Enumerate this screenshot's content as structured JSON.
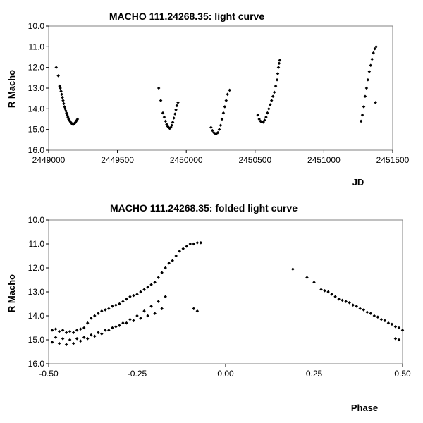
{
  "chart_data": [
    {
      "type": "scatter",
      "title": "MACHO 111.24268.35: light curve",
      "xlabel": "JD",
      "ylabel": "R Macho",
      "xlim": [
        2449000,
        2451500
      ],
      "ylim": [
        10.0,
        16.0
      ],
      "y_inverted": true,
      "grid": false,
      "xticks": [
        "2449000",
        "2449500",
        "2450000",
        "2450500",
        "2451000",
        "2451500"
      ],
      "yticks": [
        "10.0",
        "11.0",
        "12.0",
        "13.0",
        "14.0",
        "15.0",
        "16.0"
      ],
      "series": [
        {
          "color": "#000000",
          "points": [
            [
              2449055,
              12.0
            ],
            [
              2449070,
              12.4
            ],
            [
              2449080,
              12.9
            ],
            [
              2449085,
              13.0
            ],
            [
              2449090,
              13.15
            ],
            [
              2449095,
              13.3
            ],
            [
              2449100,
              13.45
            ],
            [
              2449105,
              13.6
            ],
            [
              2449110,
              13.75
            ],
            [
              2449115,
              13.9
            ],
            [
              2449120,
              14.0
            ],
            [
              2449125,
              14.1
            ],
            [
              2449130,
              14.2
            ],
            [
              2449135,
              14.3
            ],
            [
              2449140,
              14.4
            ],
            [
              2449145,
              14.5
            ],
            [
              2449150,
              14.55
            ],
            [
              2449155,
              14.6
            ],
            [
              2449160,
              14.65
            ],
            [
              2449165,
              14.7
            ],
            [
              2449170,
              14.72
            ],
            [
              2449175,
              14.75
            ],
            [
              2449180,
              14.75
            ],
            [
              2449185,
              14.72
            ],
            [
              2449190,
              14.7
            ],
            [
              2449195,
              14.65
            ],
            [
              2449200,
              14.6
            ],
            [
              2449205,
              14.55
            ],
            [
              2449210,
              14.5
            ],
            [
              2449800,
              13.0
            ],
            [
              2449815,
              13.6
            ],
            [
              2449830,
              14.2
            ],
            [
              2449840,
              14.4
            ],
            [
              2449850,
              14.6
            ],
            [
              2449858,
              14.75
            ],
            [
              2449865,
              14.85
            ],
            [
              2449872,
              14.9
            ],
            [
              2449880,
              14.95
            ],
            [
              2449888,
              14.9
            ],
            [
              2449895,
              14.8
            ],
            [
              2449902,
              14.65
            ],
            [
              2449910,
              14.45
            ],
            [
              2449918,
              14.25
            ],
            [
              2449925,
              14.05
            ],
            [
              2449932,
              13.85
            ],
            [
              2449940,
              13.7
            ],
            [
              2450180,
              14.9
            ],
            [
              2450190,
              15.05
            ],
            [
              2450200,
              15.15
            ],
            [
              2450210,
              15.2
            ],
            [
              2450220,
              15.2
            ],
            [
              2450230,
              15.15
            ],
            [
              2450240,
              15.0
            ],
            [
              2450250,
              14.8
            ],
            [
              2450260,
              14.5
            ],
            [
              2450270,
              14.2
            ],
            [
              2450280,
              13.9
            ],
            [
              2450290,
              13.6
            ],
            [
              2450300,
              13.3
            ],
            [
              2450315,
              13.1
            ],
            [
              2450520,
              14.3
            ],
            [
              2450530,
              14.5
            ],
            [
              2450540,
              14.6
            ],
            [
              2450550,
              14.65
            ],
            [
              2450560,
              14.65
            ],
            [
              2450570,
              14.55
            ],
            [
              2450580,
              14.4
            ],
            [
              2450590,
              14.2
            ],
            [
              2450600,
              14.0
            ],
            [
              2450610,
              13.8
            ],
            [
              2450620,
              13.6
            ],
            [
              2450630,
              13.4
            ],
            [
              2450640,
              13.2
            ],
            [
              2450650,
              12.9
            ],
            [
              2450660,
              12.6
            ],
            [
              2450665,
              12.3
            ],
            [
              2450670,
              12.0
            ],
            [
              2450675,
              11.8
            ],
            [
              2450680,
              11.65
            ],
            [
              2451270,
              14.6
            ],
            [
              2451280,
              14.3
            ],
            [
              2451290,
              13.9
            ],
            [
              2451300,
              13.4
            ],
            [
              2451310,
              13.0
            ],
            [
              2451320,
              12.6
            ],
            [
              2451330,
              12.2
            ],
            [
              2451340,
              11.9
            ],
            [
              2451350,
              11.6
            ],
            [
              2451360,
              11.3
            ],
            [
              2451370,
              11.1
            ],
            [
              2451380,
              11.0
            ],
            [
              2451375,
              13.7
            ]
          ]
        }
      ]
    },
    {
      "type": "scatter",
      "title": "MACHO 111.24268.35: folded light curve",
      "xlabel": "Phase",
      "ylabel": "R Macho",
      "xlim": [
        -0.5,
        0.5
      ],
      "ylim": [
        10.0,
        16.0
      ],
      "y_inverted": true,
      "grid": false,
      "xticks": [
        "-0.50",
        "-0.25",
        "0.00",
        "0.25",
        "0.50"
      ],
      "yticks": [
        "10.0",
        "11.0",
        "12.0",
        "13.0",
        "14.0",
        "15.0",
        "16.0"
      ],
      "series": [
        {
          "color": "#000000",
          "points": [
            [
              -0.49,
              14.6
            ],
            [
              -0.48,
              14.55
            ],
            [
              -0.47,
              14.65
            ],
            [
              -0.46,
              14.6
            ],
            [
              -0.45,
              14.7
            ],
            [
              -0.44,
              14.65
            ],
            [
              -0.43,
              14.7
            ],
            [
              -0.42,
              14.6
            ],
            [
              -0.41,
              14.55
            ],
            [
              -0.4,
              14.5
            ],
            [
              -0.39,
              14.3
            ],
            [
              -0.38,
              14.1
            ],
            [
              -0.37,
              14.0
            ],
            [
              -0.36,
              13.9
            ],
            [
              -0.35,
              13.8
            ],
            [
              -0.34,
              13.75
            ],
            [
              -0.33,
              13.7
            ],
            [
              -0.32,
              13.6
            ],
            [
              -0.31,
              13.55
            ],
            [
              -0.3,
              13.5
            ],
            [
              -0.29,
              13.4
            ],
            [
              -0.28,
              13.3
            ],
            [
              -0.27,
              13.2
            ],
            [
              -0.26,
              13.15
            ],
            [
              -0.25,
              13.1
            ],
            [
              -0.24,
              13.0
            ],
            [
              -0.23,
              12.9
            ],
            [
              -0.22,
              12.8
            ],
            [
              -0.21,
              12.7
            ],
            [
              -0.2,
              12.6
            ],
            [
              -0.19,
              12.4
            ],
            [
              -0.18,
              12.2
            ],
            [
              -0.17,
              12.0
            ],
            [
              -0.16,
              11.8
            ],
            [
              -0.15,
              11.7
            ],
            [
              -0.48,
              14.9
            ],
            [
              -0.46,
              14.95
            ],
            [
              -0.44,
              15.0
            ],
            [
              -0.42,
              14.95
            ],
            [
              -0.4,
              14.9
            ],
            [
              -0.38,
              14.8
            ],
            [
              -0.36,
              14.7
            ],
            [
              -0.34,
              14.6
            ],
            [
              -0.32,
              14.5
            ],
            [
              -0.3,
              14.4
            ],
            [
              -0.28,
              14.3
            ],
            [
              -0.26,
              14.2
            ],
            [
              -0.24,
              14.1
            ],
            [
              -0.22,
              14.0
            ],
            [
              -0.2,
              13.9
            ],
            [
              -0.18,
              13.7
            ],
            [
              -0.49,
              15.1
            ],
            [
              -0.47,
              15.15
            ],
            [
              -0.45,
              15.2
            ],
            [
              -0.43,
              15.15
            ],
            [
              -0.41,
              15.05
            ],
            [
              -0.39,
              14.95
            ],
            [
              -0.37,
              14.85
            ],
            [
              -0.35,
              14.75
            ],
            [
              -0.33,
              14.6
            ],
            [
              -0.31,
              14.45
            ],
            [
              -0.29,
              14.3
            ],
            [
              -0.27,
              14.15
            ],
            [
              -0.25,
              14.0
            ],
            [
              -0.23,
              13.8
            ],
            [
              -0.21,
              13.6
            ],
            [
              -0.19,
              13.4
            ],
            [
              -0.17,
              13.2
            ],
            [
              -0.14,
              11.5
            ],
            [
              -0.13,
              11.3
            ],
            [
              -0.12,
              11.2
            ],
            [
              -0.11,
              11.1
            ],
            [
              -0.1,
              11.0
            ],
            [
              -0.09,
              11.0
            ],
            [
              -0.08,
              10.95
            ],
            [
              -0.07,
              10.95
            ],
            [
              -0.09,
              13.7
            ],
            [
              -0.08,
              13.8
            ],
            [
              0.19,
              12.05
            ],
            [
              0.23,
              12.4
            ],
            [
              0.25,
              12.6
            ],
            [
              0.27,
              12.9
            ],
            [
              0.28,
              12.95
            ],
            [
              0.29,
              13.0
            ],
            [
              0.3,
              13.1
            ],
            [
              0.31,
              13.2
            ],
            [
              0.32,
              13.3
            ],
            [
              0.33,
              13.35
            ],
            [
              0.34,
              13.4
            ],
            [
              0.35,
              13.45
            ],
            [
              0.36,
              13.55
            ],
            [
              0.37,
              13.6
            ],
            [
              0.38,
              13.7
            ],
            [
              0.39,
              13.75
            ],
            [
              0.4,
              13.85
            ],
            [
              0.41,
              13.9
            ],
            [
              0.42,
              14.0
            ],
            [
              0.43,
              14.05
            ],
            [
              0.44,
              14.15
            ],
            [
              0.45,
              14.2
            ],
            [
              0.46,
              14.3
            ],
            [
              0.47,
              14.35
            ],
            [
              0.48,
              14.45
            ],
            [
              0.49,
              14.5
            ],
            [
              0.5,
              14.6
            ],
            [
              0.48,
              14.95
            ],
            [
              0.49,
              15.0
            ]
          ]
        }
      ]
    }
  ]
}
